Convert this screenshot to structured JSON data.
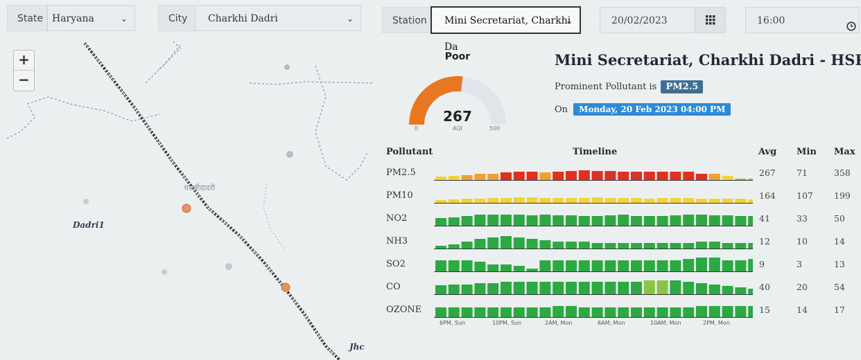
{
  "filters": {
    "state_label": "State",
    "state_value": "Haryana",
    "city_label": "City",
    "city_value": "Charkhi Dadri",
    "station_label": "Station",
    "station_value": "Mini Secretariat, Charkhi Da",
    "date_value": "20/02/2023",
    "time_value": "16:00"
  },
  "map": {
    "zoom_in": "+",
    "zoom_out": "−",
    "labels": [
      "Dadri1",
      "Jhc",
      "चरखीदादरी"
    ]
  },
  "gauge": {
    "status": "Poor",
    "value": 267,
    "unit": "AQI",
    "min": "0",
    "max": "500",
    "fill_fraction": 0.534,
    "color": "#e87722"
  },
  "station": {
    "title": "Mini Secretariat, Charkhi Dadri - HSPCB",
    "prominent_label": "Prominent Pollutant is",
    "prominent_value": "PM2.5",
    "on_label": "On",
    "on_value": "Monday, 20 Feb 2023 04:00 PM"
  },
  "table": {
    "headers": {
      "pollutant": "Pollutant",
      "timeline": "Timeline",
      "avg": "Avg",
      "min": "Min",
      "max": "Max"
    },
    "rows": [
      {
        "name": "PM2.5",
        "avg": "267",
        "min": "71",
        "max": "358",
        "series": [
          25,
          30,
          35,
          45,
          45,
          55,
          60,
          60,
          55,
          60,
          65,
          70,
          65,
          65,
          60,
          60,
          60,
          60,
          60,
          60,
          45,
          45,
          30,
          10,
          10,
          10
        ],
        "colors": [
          "#f0d33a",
          "#f0d33a",
          "#f0a030",
          "#f0a030",
          "#f0a030",
          "#e03020",
          "#e03020",
          "#e03020",
          "#f0a030",
          "#e03020",
          "#e03020",
          "#e03020",
          "#e03020",
          "#e03020",
          "#e03020",
          "#e03020",
          "#e03020",
          "#e03020",
          "#e03020",
          "#e03020",
          "#e03020",
          "#f0a030",
          "#f0d33a",
          "#8bc34a",
          "#8bc34a",
          "#8bc34a"
        ]
      },
      {
        "name": "PM10",
        "avg": "164",
        "min": "107",
        "max": "199",
        "series": [
          20,
          25,
          30,
          30,
          35,
          35,
          40,
          40,
          35,
          35,
          35,
          35,
          40,
          35,
          35,
          35,
          30,
          35,
          35,
          35,
          30,
          30,
          30,
          30,
          25,
          25
        ],
        "colors": [
          "#f0d33a"
        ]
      },
      {
        "name": "NO2",
        "avg": "41",
        "min": "33",
        "max": "50",
        "series": [
          55,
          60,
          70,
          80,
          80,
          80,
          80,
          75,
          80,
          75,
          75,
          70,
          70,
          75,
          80,
          70,
          70,
          70,
          75,
          80,
          80,
          75,
          75,
          70,
          70,
          75
        ],
        "colors": [
          "#2ea843"
        ]
      },
      {
        "name": "NH3",
        "avg": "12",
        "min": "10",
        "max": "14",
        "series": [
          20,
          30,
          50,
          70,
          80,
          90,
          80,
          70,
          60,
          50,
          50,
          50,
          40,
          40,
          40,
          40,
          40,
          40,
          40,
          40,
          50,
          50,
          40,
          40,
          40,
          40
        ],
        "colors": [
          "#2ea843"
        ]
      },
      {
        "name": "SO2",
        "avg": "9",
        "min": "3",
        "max": "13",
        "series": [
          80,
          80,
          80,
          70,
          50,
          50,
          40,
          20,
          80,
          80,
          80,
          80,
          80,
          80,
          80,
          80,
          80,
          80,
          80,
          90,
          100,
          100,
          80,
          80,
          90,
          100
        ],
        "colors": [
          "#2ea843"
        ]
      },
      {
        "name": "CO",
        "avg": "40",
        "min": "20",
        "max": "54",
        "series": [
          65,
          70,
          70,
          80,
          80,
          90,
          90,
          90,
          90,
          90,
          90,
          90,
          90,
          90,
          90,
          90,
          100,
          100,
          100,
          90,
          80,
          70,
          60,
          50,
          40,
          40
        ],
        "colors": [
          "#2ea843",
          "#2ea843",
          "#2ea843",
          "#2ea843",
          "#2ea843",
          "#2ea843",
          "#2ea843",
          "#2ea843",
          "#2ea843",
          "#2ea843",
          "#2ea843",
          "#2ea843",
          "#2ea843",
          "#2ea843",
          "#2ea843",
          "#2ea843",
          "#8bc34a",
          "#8bc34a",
          "#2ea843",
          "#2ea843",
          "#2ea843",
          "#2ea843",
          "#2ea843",
          "#2ea843",
          "#2ea843",
          "#2ea843"
        ]
      },
      {
        "name": "OZONE",
        "avg": "15",
        "min": "14",
        "max": "17",
        "series": [
          70,
          70,
          70,
          70,
          70,
          70,
          70,
          70,
          70,
          80,
          80,
          70,
          70,
          70,
          70,
          70,
          70,
          70,
          70,
          70,
          80,
          80,
          80,
          80,
          80,
          80
        ],
        "colors": [
          "#2ea843"
        ]
      }
    ],
    "axis_ticks": [
      "6PM, Sun",
      "10PM, Sun",
      "2AM, Mon",
      "6AM, Mon",
      "10AM, Mon",
      "2PM, Mon"
    ]
  }
}
